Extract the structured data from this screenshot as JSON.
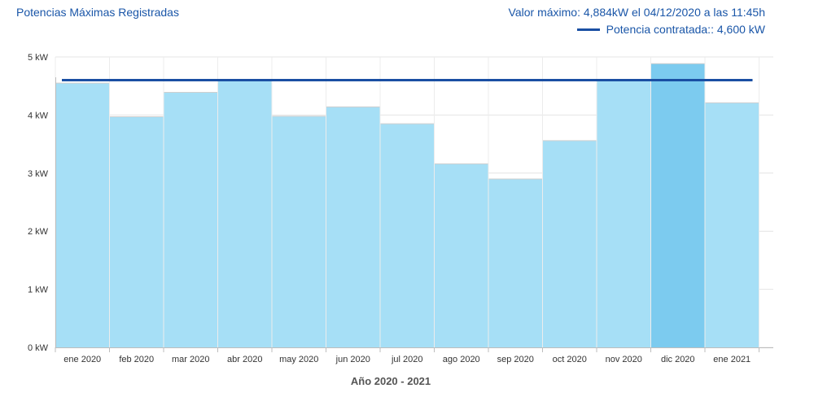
{
  "header": {
    "title": "Potencias Máximas Registradas",
    "max_info": "Valor máximo: 4,884kW el 04/12/2020 a las 11:45h",
    "legend_label": "Potencia contratada:: 4,600 kW"
  },
  "colors": {
    "bar": "#a6dff6",
    "bar_highlight": "#7ccbef",
    "contracted_line": "#1a4fa3",
    "text": "#1a56a8"
  },
  "chart_data": {
    "type": "bar",
    "title": "Potencias Máximas Registradas",
    "xlabel": "Año 2020 - 2021",
    "ylabel": "",
    "categories": [
      "ene 2020",
      "feb 2020",
      "mar 2020",
      "abr 2020",
      "may 2020",
      "jun 2020",
      "jul 2020",
      "ago 2020",
      "sep 2020",
      "oct 2020",
      "nov 2020",
      "dic 2020",
      "ene 2021"
    ],
    "values": [
      4.55,
      3.97,
      4.39,
      4.61,
      3.98,
      4.14,
      3.85,
      3.16,
      2.9,
      3.56,
      4.61,
      4.884,
      4.21
    ],
    "highlight_index": 11,
    "yticks": [
      "0 kW",
      "1 kW",
      "2 kW",
      "3 kW",
      "4 kW",
      "5 kW"
    ],
    "ylim": [
      0,
      5
    ],
    "contracted_power": 4.6,
    "grid": true,
    "legend_position": "top-right"
  }
}
